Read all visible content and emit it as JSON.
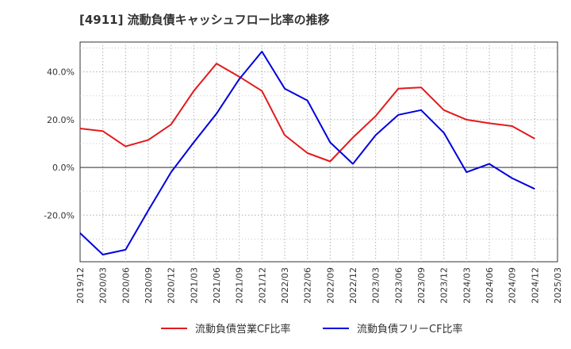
{
  "chart_data": {
    "type": "line",
    "title": "[4911]  流動負債キャッシュフロー比率の推移",
    "x": [
      "2019/12",
      "2020/03",
      "2020/06",
      "2020/09",
      "2020/12",
      "2021/03",
      "2021/06",
      "2021/09",
      "2021/12",
      "2022/03",
      "2022/06",
      "2022/09",
      "2022/12",
      "2023/03",
      "2023/06",
      "2023/09",
      "2023/12",
      "2024/03",
      "2024/06",
      "2024/09",
      "2024/12",
      "2025/03"
    ],
    "x_tick_labels": [
      "2019/12",
      "2020/03",
      "2020/06",
      "2020/09",
      "2020/12",
      "2021/03",
      "2021/06",
      "2021/09",
      "2021/12",
      "2022/03",
      "2022/06",
      "2022/09",
      "2022/12",
      "2023/03",
      "2023/06",
      "2023/09",
      "2023/12",
      "2024/03",
      "2024/06",
      "2024/09",
      "2024/12",
      "2025/03"
    ],
    "y_tick_values": [
      -20,
      0,
      20,
      40
    ],
    "y_tick_labels": [
      "-20.0%",
      "0.0%",
      "20.0%",
      "40.0%"
    ],
    "ylim": [
      -39.5,
      52.5
    ],
    "grid": true,
    "legend_position": "bottom",
    "series": [
      {
        "name": "流動負債営業CF比率",
        "color": "#e31a1c",
        "values": [
          16.3,
          15.2,
          8.8,
          11.5,
          18.0,
          32.0,
          43.5,
          38.0,
          32.0,
          13.5,
          6.0,
          2.5,
          12.5,
          21.5,
          33.0,
          33.5,
          24.0,
          20.0,
          18.5,
          17.3,
          12.0,
          null
        ]
      },
      {
        "name": "流動負債フリーCF比率",
        "color": "#0000e0",
        "values": [
          -27.5,
          -36.5,
          -34.5,
          -18.0,
          -2.0,
          10.5,
          22.5,
          37.0,
          48.5,
          33.0,
          28.0,
          10.5,
          1.5,
          13.5,
          22.0,
          24.0,
          14.5,
          -2.0,
          1.5,
          -4.5,
          -9.0,
          null
        ]
      }
    ]
  }
}
